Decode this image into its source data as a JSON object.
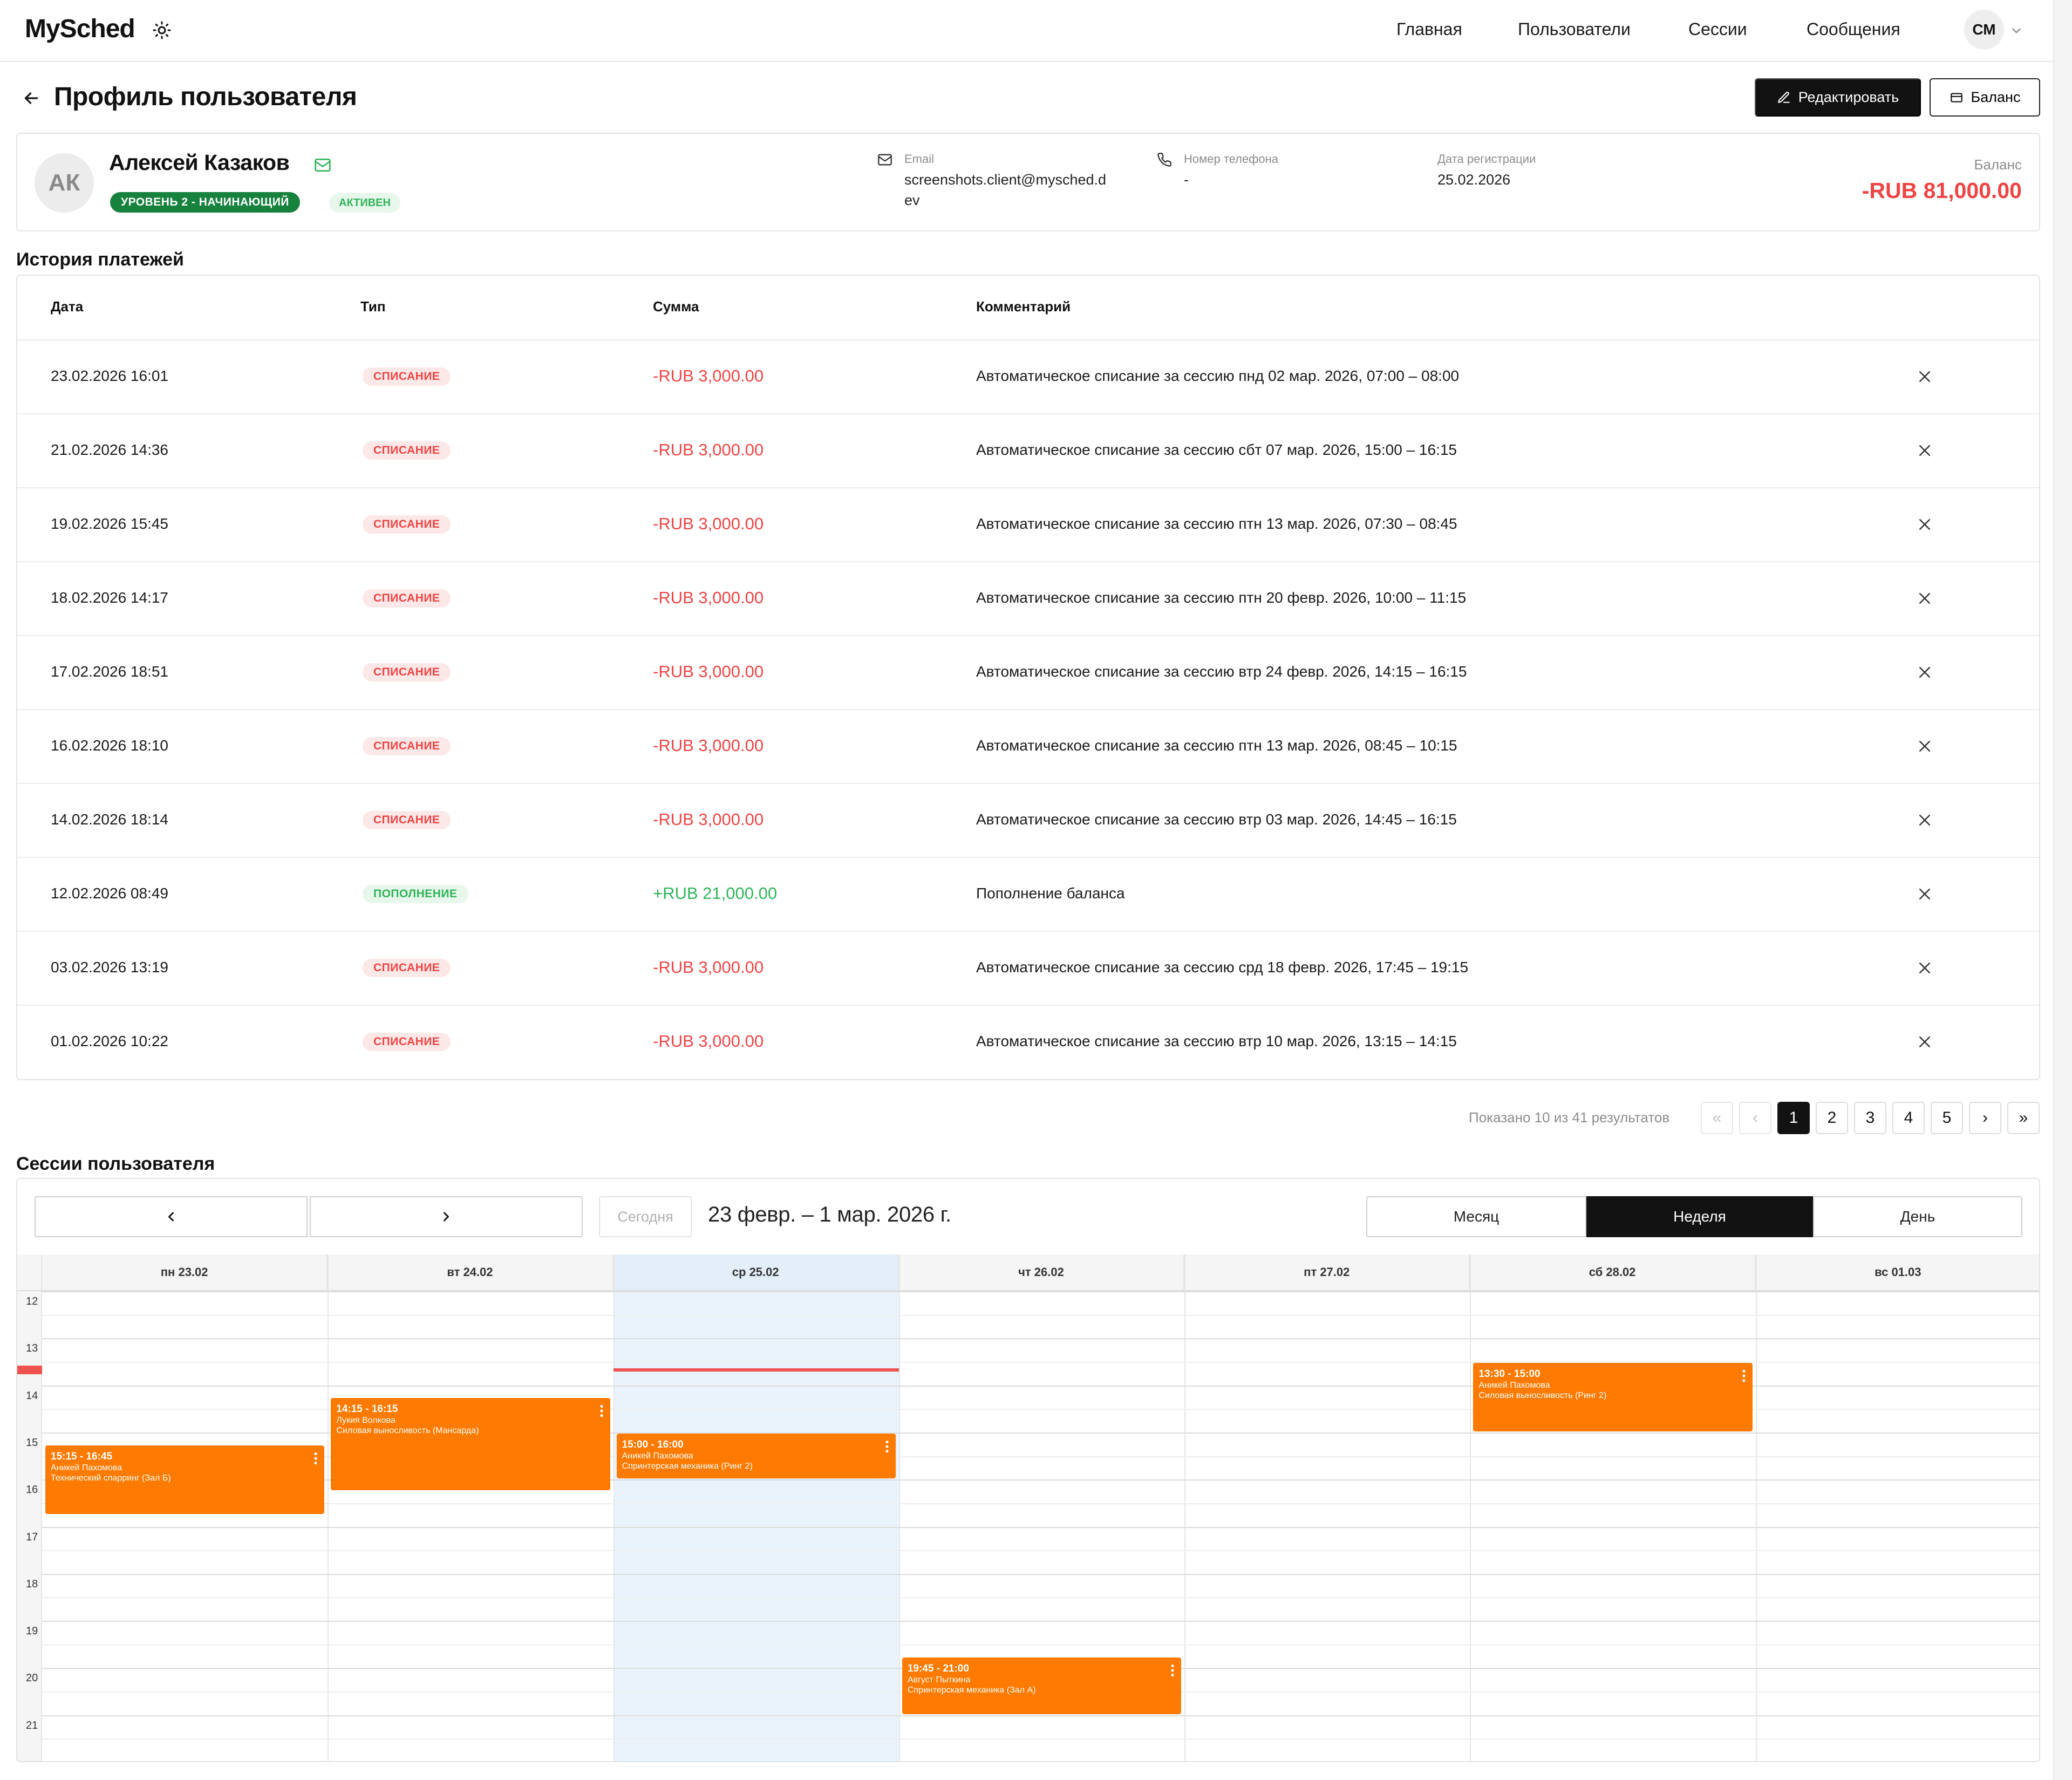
{
  "app": {
    "logo": "MySched"
  },
  "nav": {
    "items": [
      "Главная",
      "Пользователи",
      "Сессии",
      "Сообщения"
    ],
    "user_initials": "СМ"
  },
  "page": {
    "title": "Профиль пользователя",
    "edit_label": "Редактировать",
    "balance_label": "Баланс"
  },
  "profile": {
    "initials": "АК",
    "name": "Алексей Казаков",
    "level": "УРОВЕНЬ 2 - НАЧИНАЮЩИЙ",
    "status": "АКТИВЕН",
    "email_label": "Email",
    "email_line1": "screenshots.client@mysched.d",
    "email_line2": "ev",
    "phone_label": "Номер телефона",
    "phone": "-",
    "reg_label": "Дата регистрации",
    "reg_date": "25.02.2026",
    "balance_label": "Баланс",
    "balance": "-RUB 81,000.00"
  },
  "payments": {
    "title": "История платежей",
    "headers": {
      "date": "Дата",
      "type": "Тип",
      "amount": "Сумма",
      "comment": "Комментарий"
    },
    "rows": [
      {
        "date": "23.02.2026 16:01",
        "type": "СПИСАНИЕ",
        "amount": "-RUB 3,000.00",
        "comment": "Автоматическое списание за сессию пнд 02 мар. 2026, 07:00 – 08:00"
      },
      {
        "date": "21.02.2026 14:36",
        "type": "СПИСАНИЕ",
        "amount": "-RUB 3,000.00",
        "comment": "Автоматическое списание за сессию сбт 07 мар. 2026, 15:00 – 16:15"
      },
      {
        "date": "19.02.2026 15:45",
        "type": "СПИСАНИЕ",
        "amount": "-RUB 3,000.00",
        "comment": "Автоматическое списание за сессию птн 13 мар. 2026, 07:30 – 08:45"
      },
      {
        "date": "18.02.2026 14:17",
        "type": "СПИСАНИЕ",
        "amount": "-RUB 3,000.00",
        "comment": "Автоматическое списание за сессию птн 20 февр. 2026, 10:00 – 11:15"
      },
      {
        "date": "17.02.2026 18:51",
        "type": "СПИСАНИЕ",
        "amount": "-RUB 3,000.00",
        "comment": "Автоматическое списание за сессию втр 24 февр. 2026, 14:15 – 16:15"
      },
      {
        "date": "16.02.2026 18:10",
        "type": "СПИСАНИЕ",
        "amount": "-RUB 3,000.00",
        "comment": "Автоматическое списание за сессию птн 13 мар. 2026, 08:45 – 10:15"
      },
      {
        "date": "14.02.2026 18:14",
        "type": "СПИСАНИЕ",
        "amount": "-RUB 3,000.00",
        "comment": "Автоматическое списание за сессию втр 03 мар. 2026, 14:45 – 16:15"
      },
      {
        "date": "12.02.2026 08:49",
        "type": "ПОПОЛНЕНИЕ",
        "amount": "+RUB 21,000.00",
        "comment": "Пополнение баланса"
      },
      {
        "date": "03.02.2026 13:19",
        "type": "СПИСАНИЕ",
        "amount": "-RUB 3,000.00",
        "comment": "Автоматическое списание за сессию срд 18 февр. 2026, 17:45 – 19:15"
      },
      {
        "date": "01.02.2026 10:22",
        "type": "СПИСАНИЕ",
        "amount": "-RUB 3,000.00",
        "comment": "Автоматическое списание за сессию втр 10 мар. 2026, 13:15 – 14:15"
      }
    ],
    "pagination": {
      "info": "Показано 10 из 41 результатов",
      "pages": [
        "1",
        "2",
        "3",
        "4",
        "5"
      ],
      "current": "1"
    }
  },
  "sessions": {
    "title": "Сессии пользователя",
    "today_label": "Сегодня",
    "range": "23 февр. – 1 мар. 2026 г.",
    "views": {
      "month": "Месяц",
      "week": "Неделя",
      "day": "День",
      "active": "Неделя"
    },
    "days": [
      "пн 23.02",
      "вт 24.02",
      "ср 25.02",
      "чт 26.02",
      "пт 27.02",
      "сб 28.02",
      "вс 01.03"
    ],
    "today_index": 2,
    "hours": [
      "12",
      "13",
      "14",
      "15",
      "16",
      "17",
      "18",
      "19",
      "20",
      "21"
    ],
    "now_time": "13:40",
    "event_color": "#ff7a00",
    "events": [
      {
        "day": 0,
        "time": "15:15 - 16:45",
        "person": "Аникей Пахомова",
        "title": "Технический спарринг (Зал Б)"
      },
      {
        "day": 1,
        "time": "14:15 - 16:15",
        "person": "Лукия Волкова",
        "title": "Силовая выносливость (Мансарда)"
      },
      {
        "day": 2,
        "time": "15:00 - 16:00",
        "person": "Аникей Пахомова",
        "title": "Спринтерская механика (Ринг 2)"
      },
      {
        "day": 3,
        "time": "19:45 - 21:00",
        "person": "Август Пыткина",
        "title": "Спринтерская механика (Зал А)"
      },
      {
        "day": 5,
        "time": "13:30 - 15:00",
        "person": "Аникей Пахомова",
        "title": "Силовая выносливость (Ринг 2)"
      }
    ]
  }
}
